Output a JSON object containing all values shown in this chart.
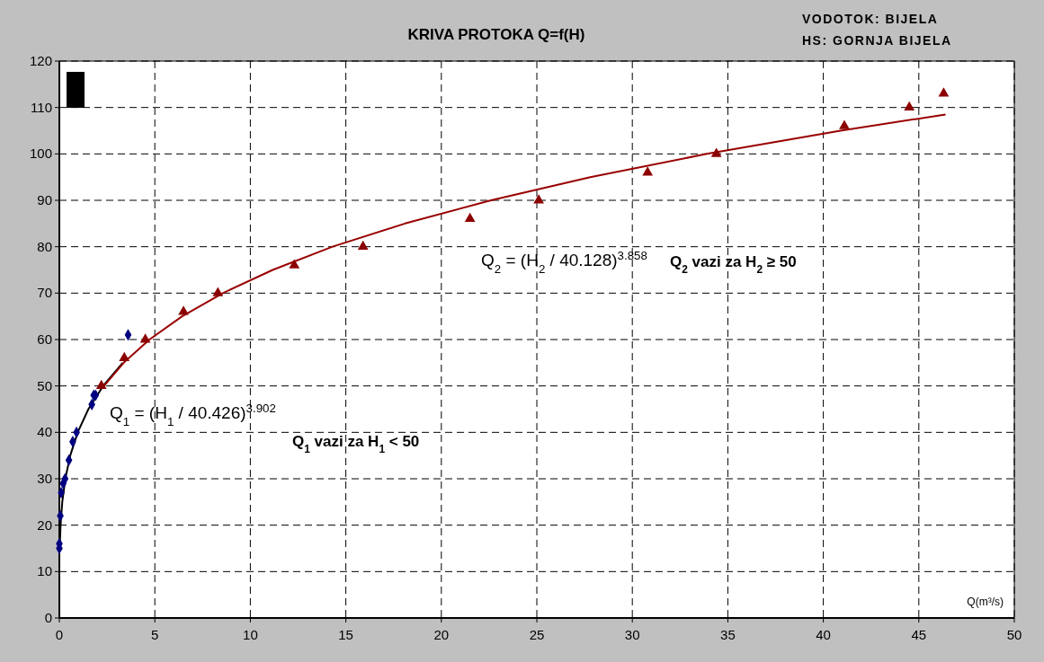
{
  "chart_data": {
    "type": "scatter",
    "title": "KRIVA PROTOKA Q=f(H)",
    "xlabel": "Q(m³/s)",
    "xlim": [
      0,
      50
    ],
    "xticks": [
      0,
      5,
      10,
      15,
      20,
      25,
      30,
      35,
      40,
      45,
      50
    ],
    "ylim": [
      0,
      120
    ],
    "yticks": [
      0,
      10,
      20,
      30,
      40,
      50,
      60,
      70,
      80,
      90,
      100,
      110,
      120
    ],
    "grid": true,
    "series": [
      {
        "type": "line",
        "color": "#000000",
        "marker": "none",
        "line_style": "solid",
        "x": [
          0.021,
          0.064,
          0.153,
          0.312,
          0.57,
          0.96,
          1.52,
          2.29,
          3.32
        ],
        "values": [
          15,
          20,
          25,
          30,
          35,
          40,
          45,
          50,
          55
        ]
      },
      {
        "type": "line",
        "color": "#990000",
        "marker": "none",
        "line_style": "solid",
        "x": [
          2.34,
          3.37,
          4.72,
          6.43,
          8.56,
          11.17,
          14.3,
          18.1,
          22.6,
          27.8,
          33.9,
          40.9,
          46.4
        ],
        "values": [
          50,
          55,
          60,
          65,
          70,
          75,
          80,
          85,
          90,
          95,
          100,
          105,
          108.5
        ]
      },
      {
        "color": "#000080",
        "marker": "diamond",
        "x": [
          0,
          0,
          0.05,
          0.1,
          0.2,
          0.3,
          0.5,
          0.7,
          0.9,
          1.7,
          1.8,
          1.9,
          3.6
        ],
        "values": [
          15,
          16,
          22,
          27,
          29,
          30,
          34,
          38,
          40,
          46,
          48,
          48,
          61
        ]
      },
      {
        "color": "#8b0000",
        "marker": "triangle",
        "x": [
          2.2,
          3.4,
          4.5,
          6.5,
          8.3,
          12.3,
          15.9,
          21.5,
          25.1,
          30.8,
          34.4,
          41.1,
          44.5,
          46.3
        ],
        "values": [
          50,
          56,
          60,
          66,
          70,
          76,
          80,
          86,
          90,
          96,
          100,
          106,
          110,
          113
        ]
      }
    ],
    "annotations": [
      "VODOTOK: BIJELA",
      "HS: GORNJA BIJELA",
      "Q$_{1}$ = (H$_{1}$ / 40.426)$^{3.902}$",
      "Q$_{1}$ vazi za H$_{1}$ < 50",
      "Q$_{2}$ = (H$_{2}$ / 40.128)$^{3.858}$",
      "Q$_{2}$ vazi za H$_{2}$ ≥ 50"
    ]
  }
}
